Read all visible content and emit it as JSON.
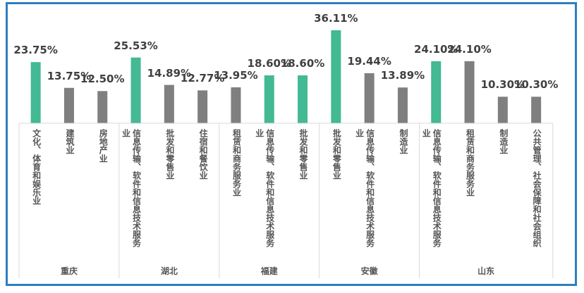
{
  "chart_data": {
    "type": "bar",
    "title": "",
    "xlabel": "",
    "ylabel": "",
    "ylim": [
      0,
      40
    ],
    "grid": false,
    "highlight_color": "#43b994",
    "base_color": "#7f7f7f",
    "groups": [
      {
        "name": "重庆",
        "bars": [
          {
            "category": "文化、体育和娱乐业",
            "value": 23.75,
            "label": "23.75%",
            "highlight": true
          },
          {
            "category": "建筑业",
            "value": 13.75,
            "label": "13.75%",
            "highlight": false
          },
          {
            "category": "房地产业",
            "value": 12.5,
            "label": "12.50%",
            "highlight": false
          }
        ]
      },
      {
        "name": "湖北",
        "bars": [
          {
            "category": "信息传输、软件和信息技术服务业",
            "value": 25.53,
            "label": "25.53%",
            "highlight": true
          },
          {
            "category": "批发和零售业",
            "value": 14.89,
            "label": "14.89%",
            "highlight": false
          },
          {
            "category": "住宿和餐饮业",
            "value": 12.77,
            "label": "12.77%",
            "highlight": false
          }
        ]
      },
      {
        "name": "福建",
        "bars": [
          {
            "category": "租赁和商务服务业",
            "value": 13.95,
            "label": "13.95%",
            "highlight": false
          },
          {
            "category": "信息传输、软件和信息技术服务业",
            "value": 18.6,
            "label": "18.60%",
            "highlight": true
          },
          {
            "category": "批发和零售业",
            "value": 18.6,
            "label": "18.60%",
            "highlight": true
          }
        ]
      },
      {
        "name": "安徽",
        "bars": [
          {
            "category": "批发和零售业",
            "value": 36.11,
            "label": "36.11%",
            "highlight": true
          },
          {
            "category": "信息传输、软件和信息技术服务业",
            "value": 19.44,
            "label": "19.44%",
            "highlight": false
          },
          {
            "category": "制造业",
            "value": 13.89,
            "label": "13.89%",
            "highlight": false
          }
        ]
      },
      {
        "name": "山东",
        "bars": [
          {
            "category": "信息传输、软件和信息技术服务业",
            "value": 24.1,
            "label": "24.10%",
            "highlight": true
          },
          {
            "category": "租赁和商务服务业",
            "value": 24.1,
            "label": "24.10%",
            "highlight": false
          },
          {
            "category": "制造业",
            "value": 10.3,
            "label": "10.30%",
            "highlight": false
          },
          {
            "category": "公共管理、社会保障和社会组织",
            "value": 10.3,
            "label": "10.30%",
            "highlight": false
          }
        ]
      }
    ]
  }
}
